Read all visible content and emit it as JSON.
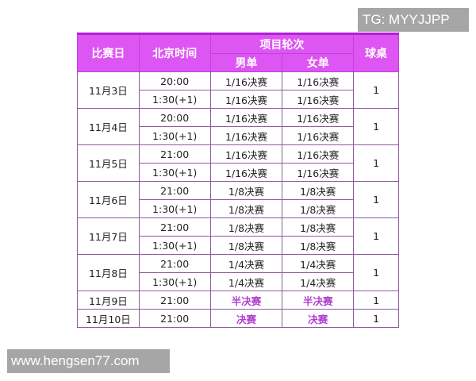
{
  "watermarks": {
    "tg": "TG: MYYJJPP",
    "site": "www.hengsen77.com"
  },
  "header": {
    "date": "比赛日",
    "time": "北京时间",
    "event": "项目轮次",
    "men": "男单",
    "women": "女单",
    "table": "球桌"
  },
  "days": [
    {
      "date": "11月3日",
      "table": "1",
      "rows": [
        {
          "time": "20:00",
          "men": "1/16决赛",
          "women": "1/16决赛"
        },
        {
          "time": "1:30(+1)",
          "men": "1/16决赛",
          "women": "1/16决赛"
        }
      ]
    },
    {
      "date": "11月4日",
      "table": "1",
      "rows": [
        {
          "time": "20:00",
          "men": "1/16决赛",
          "women": "1/16决赛"
        },
        {
          "time": "1:30(+1)",
          "men": "1/16决赛",
          "women": "1/16决赛"
        }
      ]
    },
    {
      "date": "11月5日",
      "table": "1",
      "rows": [
        {
          "time": "21:00",
          "men": "1/16决赛",
          "women": "1/16决赛"
        },
        {
          "time": "1:30(+1)",
          "men": "1/16决赛",
          "women": "1/16决赛"
        }
      ]
    },
    {
      "date": "11月6日",
      "table": "1",
      "rows": [
        {
          "time": "21:00",
          "men": "1/8决赛",
          "women": "1/8决赛"
        },
        {
          "time": "1:30(+1)",
          "men": "1/8决赛",
          "women": "1/8决赛"
        }
      ]
    },
    {
      "date": "11月7日",
      "table": "1",
      "rows": [
        {
          "time": "21:00",
          "men": "1/8决赛",
          "women": "1/8决赛"
        },
        {
          "time": "1:30(+1)",
          "men": "1/8决赛",
          "women": "1/8决赛"
        }
      ]
    },
    {
      "date": "11月8日",
      "table": "1",
      "rows": [
        {
          "time": "21:00",
          "men": "1/4决赛",
          "women": "1/4决赛"
        },
        {
          "time": "1:30(+1)",
          "men": "1/4决赛",
          "women": "1/4决赛"
        }
      ]
    },
    {
      "date": "11月9日",
      "table": "1",
      "final": true,
      "rows": [
        {
          "time": "21:00",
          "men": "半决赛",
          "women": "半决赛"
        }
      ]
    },
    {
      "date": "11月10日",
      "table": "1",
      "final": true,
      "rows": [
        {
          "time": "21:00",
          "men": "决赛",
          "women": "决赛"
        }
      ]
    }
  ],
  "colors": {
    "header": "#dd55f2",
    "highlight": "#b03ed0"
  }
}
